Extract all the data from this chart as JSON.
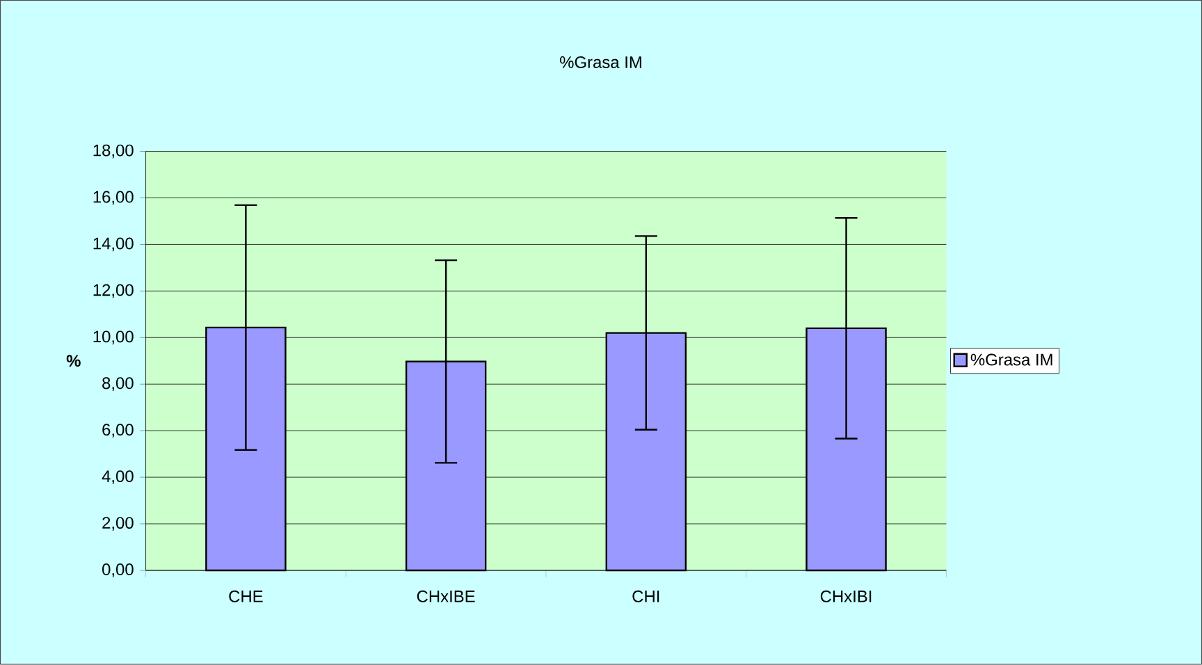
{
  "chart_data": {
    "type": "bar",
    "title": "%Grasa IM",
    "ylabel": "%",
    "categories": [
      "CHE",
      "CHxIBE",
      "CHI",
      "CHxIBI"
    ],
    "series": [
      {
        "name": "%Grasa IM",
        "color": "#9999ff",
        "values": [
          10.43,
          8.97,
          10.2,
          10.4
        ],
        "errors": [
          5.26,
          4.35,
          4.16,
          4.74
        ]
      }
    ],
    "ylim": [
      0,
      18
    ],
    "yticks": [
      {
        "value": 0,
        "label": "0,00"
      },
      {
        "value": 2,
        "label": "2,00"
      },
      {
        "value": 4,
        "label": "4,00"
      },
      {
        "value": 6,
        "label": "6,00"
      },
      {
        "value": 8,
        "label": "8,00"
      },
      {
        "value": 10,
        "label": "10,00"
      },
      {
        "value": 12,
        "label": "12,00"
      },
      {
        "value": 14,
        "label": "14,00"
      },
      {
        "value": 16,
        "label": "16,00"
      },
      {
        "value": 18,
        "label": "18,00"
      }
    ],
    "grid": "y",
    "legend": "right"
  }
}
